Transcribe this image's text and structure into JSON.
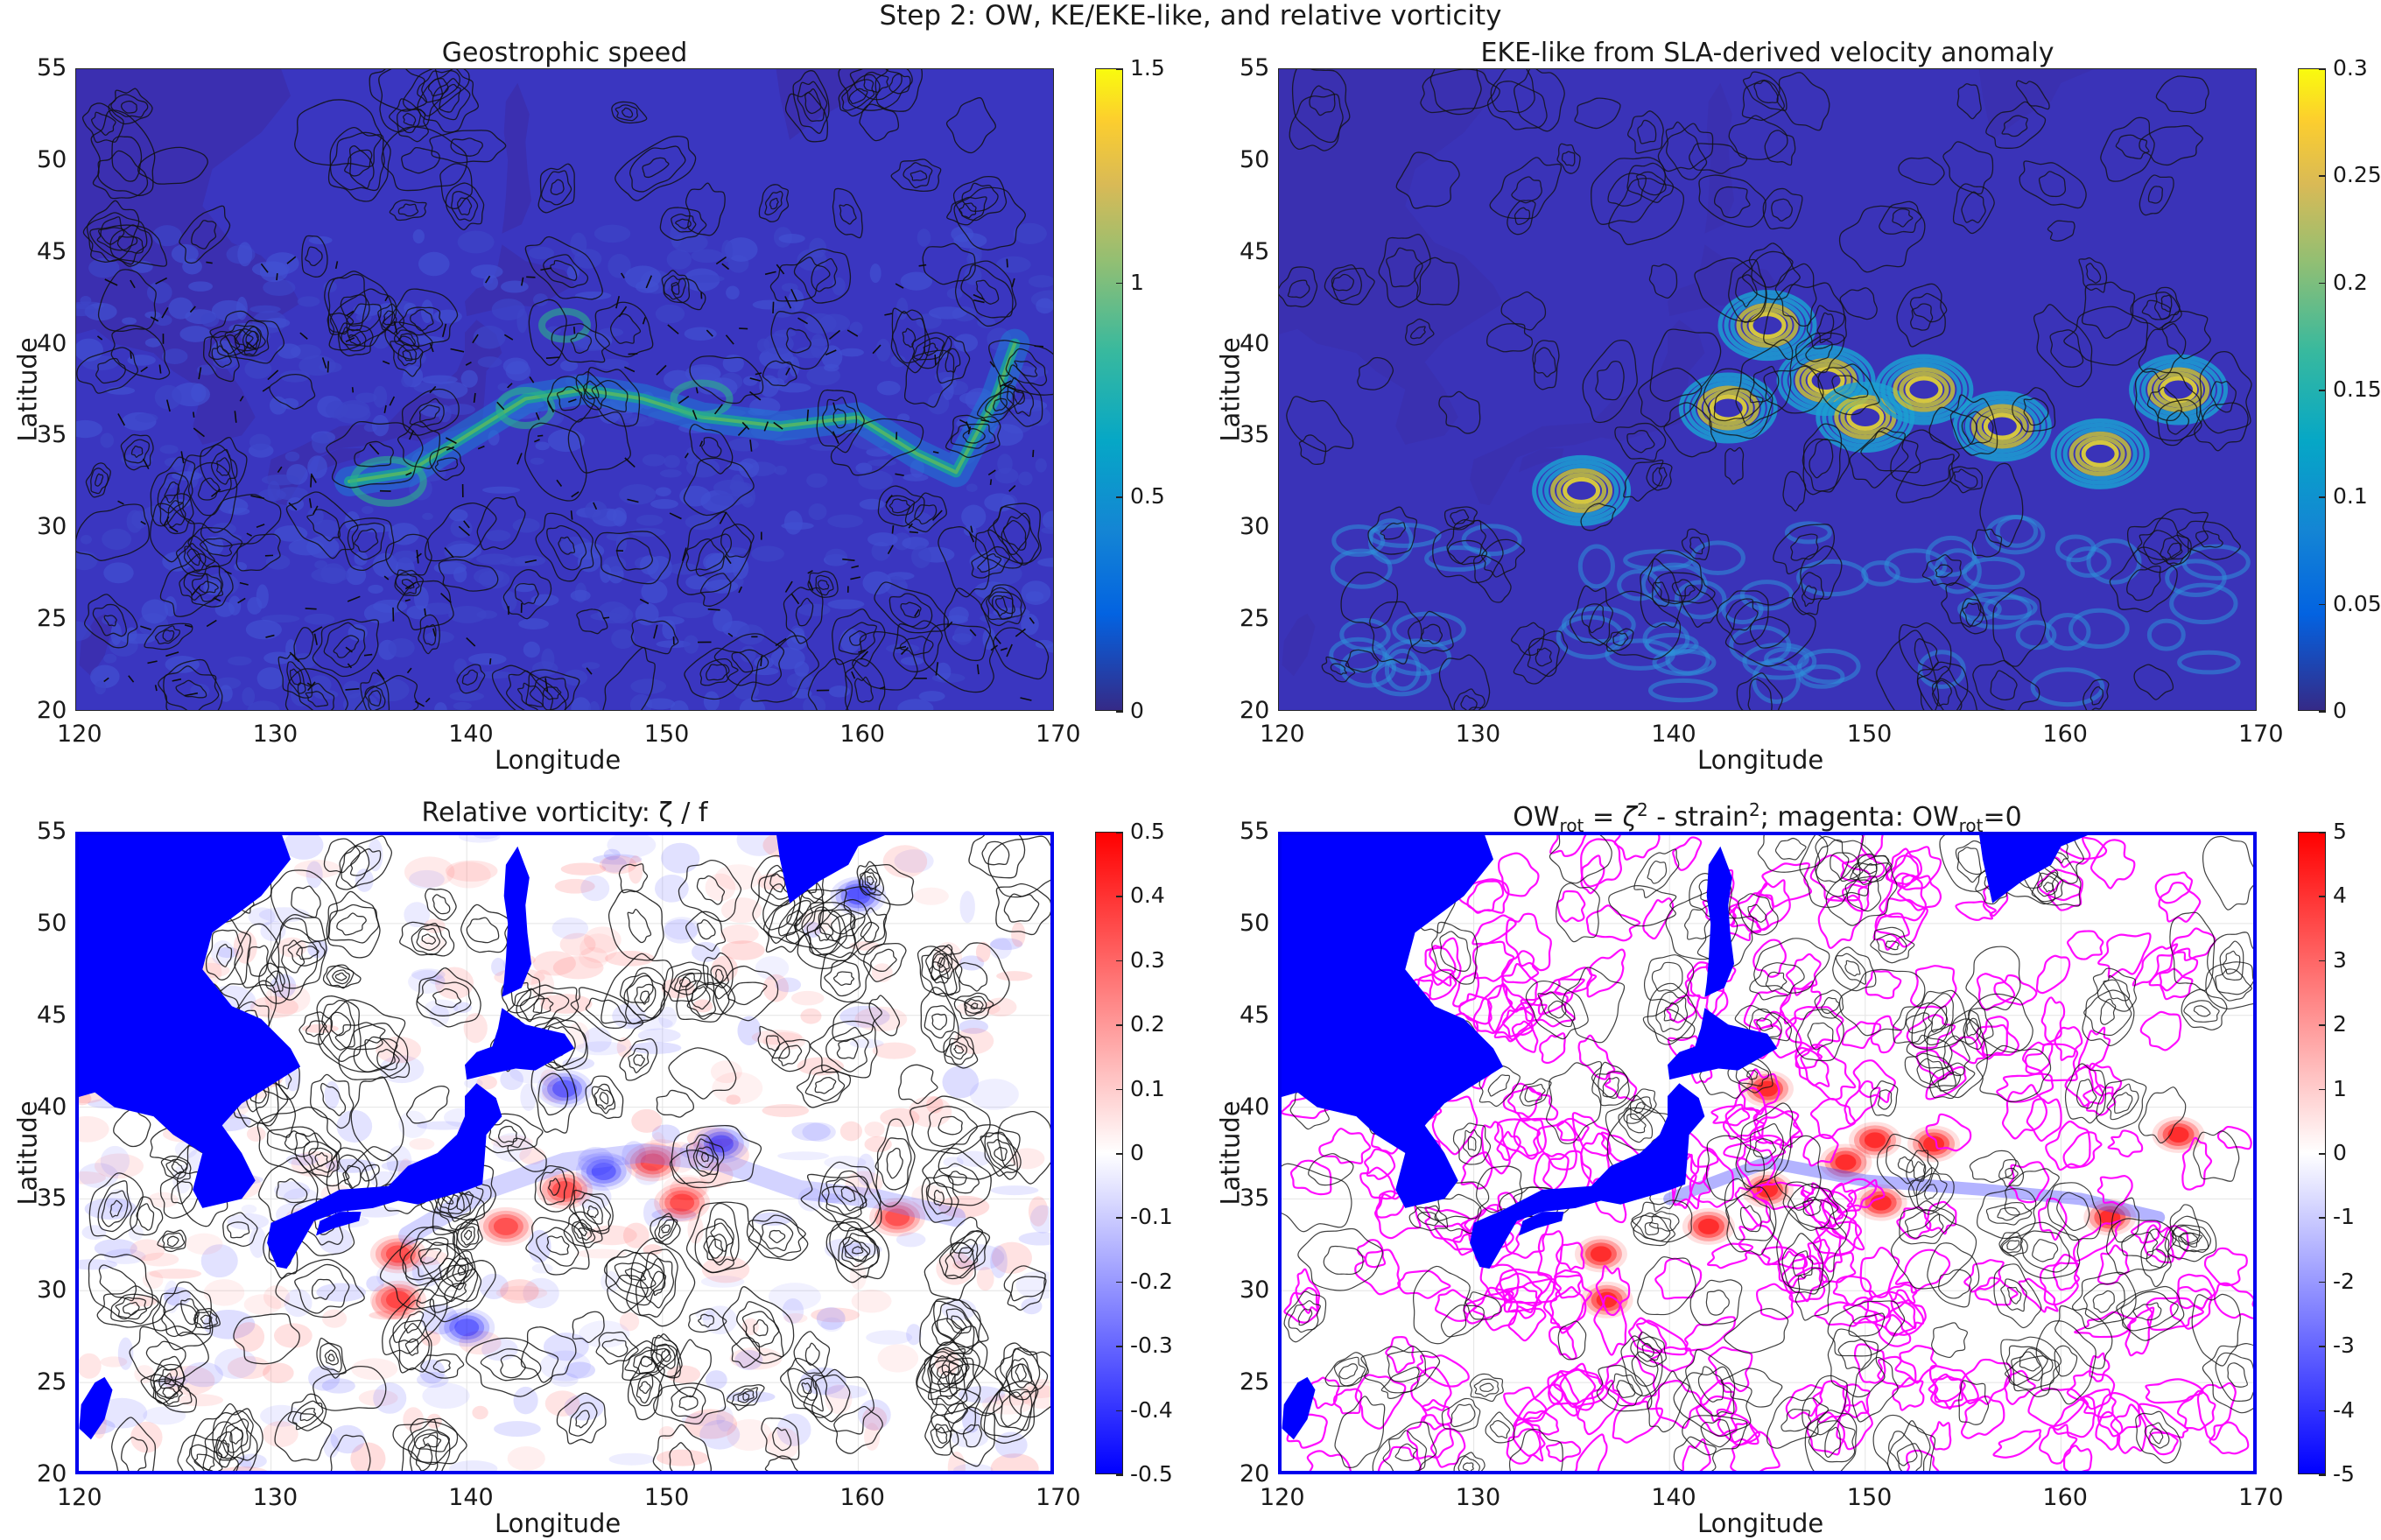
{
  "figure": {
    "title": "Step 2: OW, KE/EKE-like, and relative vorticity"
  },
  "colors": {
    "parula_low": "#3e26a8",
    "parula_mid": "#20b2aa",
    "parula_high": "#f9fb0e",
    "bwr_low": "#0000ff",
    "bwr_mid": "#ffffff",
    "bwr_high": "#ff0000",
    "land_bottom": "#0000ff",
    "ow_zero_contour": "#ff00ff",
    "contour": "#111111"
  },
  "chart_data": [
    {
      "type": "heatmap",
      "title": "Geostrophic speed",
      "xlabel": "Longitude",
      "ylabel": "Latitude",
      "xlim": [
        120,
        170
      ],
      "ylim": [
        20,
        55
      ],
      "xticks": [
        "120",
        "130",
        "140",
        "150",
        "160",
        "170"
      ],
      "yticks": [
        "20",
        "25",
        "30",
        "35",
        "40",
        "45",
        "50",
        "55"
      ],
      "colormap": "parula",
      "clim": [
        0,
        1.5
      ],
      "colorbar_ticks": [
        "0",
        "0.5",
        "1",
        "1.5"
      ],
      "overlays": [
        "velocity quiver",
        "black contours"
      ],
      "features": {
        "jet_path": [
          [
            134,
            32.5
          ],
          [
            137,
            33
          ],
          [
            140,
            35
          ],
          [
            143,
            37
          ],
          [
            146,
            37.5
          ],
          [
            149,
            37
          ],
          [
            152,
            36
          ],
          [
            156,
            35.5
          ],
          [
            160,
            36
          ],
          [
            163,
            34
          ],
          [
            165,
            33
          ],
          [
            167,
            37
          ],
          [
            168,
            40
          ]
        ],
        "jet_peak": 0.55,
        "background": 0.12
      }
    },
    {
      "type": "heatmap",
      "title": "EKE-like from SLA-derived velocity anomaly",
      "xlabel": "Longitude",
      "ylabel": "Latitude",
      "xlim": [
        120,
        170
      ],
      "ylim": [
        20,
        55
      ],
      "xticks": [
        "120",
        "130",
        "140",
        "150",
        "160",
        "170"
      ],
      "yticks": [
        "20",
        "25",
        "30",
        "35",
        "40",
        "45",
        "50",
        "55"
      ],
      "colormap": "parula",
      "clim": [
        0,
        0.3
      ],
      "colorbar_ticks": [
        "0",
        "0.05",
        "0.1",
        "0.15",
        "0.2",
        "0.25",
        "0.3"
      ],
      "overlays": [
        "black contours"
      ],
      "features": {
        "hotspots": [
          [
            135.5,
            32,
            0.26
          ],
          [
            143,
            36.5,
            0.25
          ],
          [
            145,
            41,
            0.22
          ],
          [
            148,
            38,
            0.24
          ],
          [
            150,
            36,
            0.26
          ],
          [
            153,
            37.5,
            0.24
          ],
          [
            157,
            35.5,
            0.22
          ],
          [
            162,
            34,
            0.24
          ],
          [
            166,
            37.5,
            0.22
          ]
        ],
        "background": 0.02
      }
    },
    {
      "type": "heatmap",
      "title": "Relative vorticity:  ζ / f",
      "xlabel": "Longitude",
      "ylabel": "Latitude",
      "xlim": [
        120,
        170
      ],
      "ylim": [
        20,
        55
      ],
      "xticks": [
        "120",
        "130",
        "140",
        "150",
        "160",
        "170"
      ],
      "yticks": [
        "20",
        "25",
        "30",
        "35",
        "40",
        "45",
        "50",
        "55"
      ],
      "colormap": "blue-white-red",
      "clim": [
        -0.5,
        0.5
      ],
      "colorbar_ticks": [
        "-0.5",
        "-0.4",
        "-0.3",
        "-0.2",
        "-0.1",
        "0",
        "0.1",
        "0.2",
        "0.3",
        "0.4",
        "0.5"
      ],
      "overlays": [
        "black contours",
        "land mask (blue)"
      ],
      "features": {
        "positive_eddies": [
          [
            136.5,
            32,
            0.4
          ],
          [
            142,
            33.5,
            0.3
          ],
          [
            145,
            35.5,
            0.35
          ],
          [
            149.5,
            37,
            0.3
          ],
          [
            151,
            34.8,
            0.4
          ],
          [
            162,
            34,
            0.2
          ],
          [
            136.5,
            29.5,
            0.25
          ]
        ],
        "negative_eddies": [
          [
            145,
            41,
            -0.3
          ],
          [
            147,
            36.5,
            -0.2
          ],
          [
            153,
            38,
            -0.2
          ],
          [
            160,
            51.5,
            -0.15
          ],
          [
            140,
            28,
            -0.15
          ]
        ]
      }
    },
    {
      "type": "heatmap",
      "title_parts": [
        "OW",
        "rot",
        " = ",
        "ζ",
        "2",
        " - strain",
        "2",
        "; magenta: OW",
        "rot",
        "=0"
      ],
      "xlabel": "Longitude",
      "ylabel": "Latitude",
      "xlim": [
        120,
        170
      ],
      "ylim": [
        20,
        55
      ],
      "xticks": [
        "120",
        "130",
        "140",
        "150",
        "160",
        "170"
      ],
      "yticks": [
        "20",
        "25",
        "30",
        "35",
        "40",
        "45",
        "50",
        "55"
      ],
      "colormap": "blue-white-red",
      "clim": [
        -5,
        5
      ],
      "colorbar_ticks": [
        "-5",
        "-4",
        "-3",
        "-2",
        "-1",
        "0",
        "1",
        "2",
        "3",
        "4",
        "5"
      ],
      "overlays": [
        "black contours",
        "magenta OW=0 contours",
        "land mask (blue)"
      ],
      "features": {
        "positive_cores": [
          [
            136.5,
            32,
            4.5
          ],
          [
            142,
            33.5,
            4
          ],
          [
            145,
            41,
            3.5
          ],
          [
            145,
            35.5,
            3.5
          ],
          [
            149,
            37,
            4.5
          ],
          [
            150.5,
            38.2,
            4
          ],
          [
            150.8,
            34.8,
            4.5
          ],
          [
            153.5,
            38,
            2
          ],
          [
            162.5,
            34,
            1.5
          ],
          [
            166,
            38.5,
            1.5
          ],
          [
            136.8,
            29.5,
            2
          ]
        ]
      }
    }
  ]
}
